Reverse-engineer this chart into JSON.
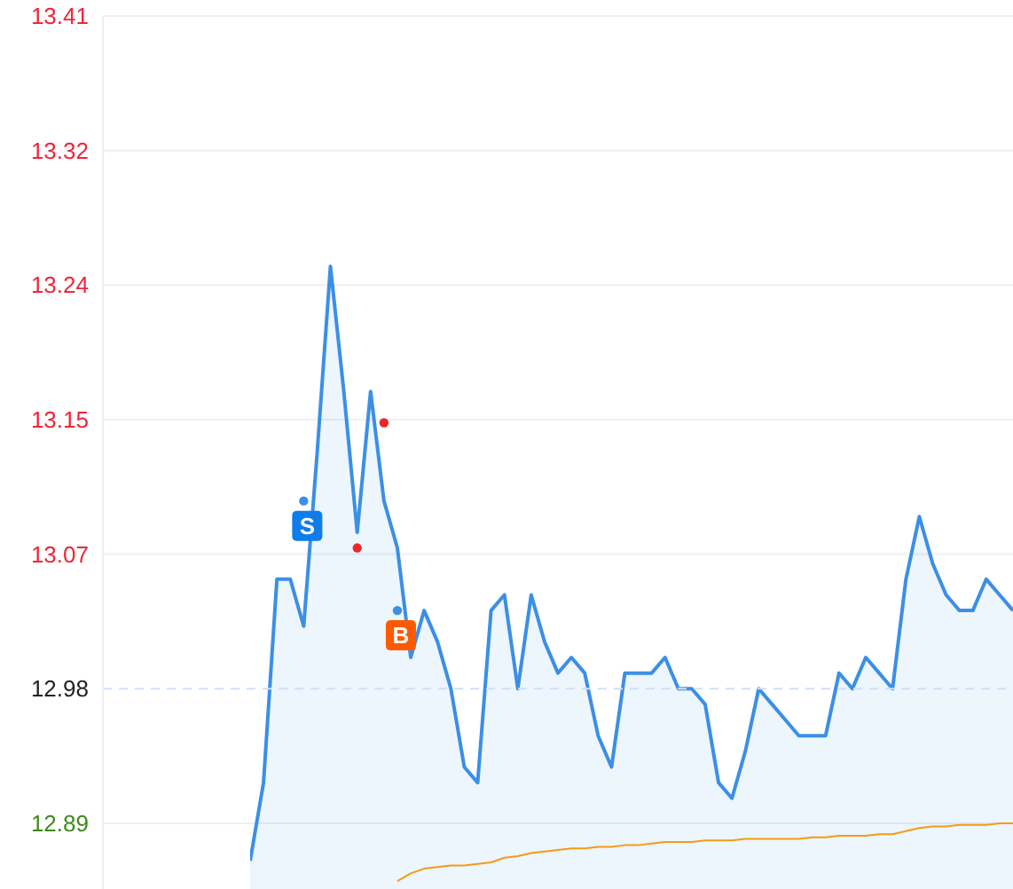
{
  "chart_data": {
    "type": "area",
    "categories": [
      null,
      null,
      null,
      null,
      null,
      null,
      null,
      null,
      null,
      null,
      null,
      null,
      null,
      null,
      null,
      null,
      null,
      null,
      null,
      null,
      null,
      null,
      null,
      null,
      null,
      null,
      null,
      null,
      null,
      null,
      null,
      null,
      null,
      null,
      null,
      null,
      null,
      null,
      null,
      null,
      null,
      null,
      null,
      null,
      null,
      null,
      null,
      null,
      null,
      null,
      null,
      null,
      null,
      null,
      null,
      null,
      null,
      null
    ],
    "series": [
      {
        "color": "#3b8fe6",
        "values": [
          12.87,
          12.92,
          13.05,
          13.05,
          13.02,
          13.13,
          13.25,
          13.17,
          13.08,
          13.17,
          13.1,
          13.07,
          13.0,
          13.03,
          13.01,
          12.98,
          12.93,
          12.92,
          13.03,
          13.04,
          12.98,
          13.04,
          13.01,
          12.99,
          13.0,
          12.99,
          12.95,
          12.93,
          12.99,
          12.99,
          12.99,
          13.0,
          12.98,
          12.98,
          12.97,
          12.92,
          12.91,
          12.94,
          12.98,
          12.97,
          12.96,
          12.95,
          12.95,
          12.95,
          12.99,
          12.98,
          13.0,
          12.99,
          12.98,
          13.05,
          13.09,
          13.06,
          13.04,
          13.03,
          13.03,
          13.05,
          13.04,
          13.03
        ]
      },
      {
        "type": "line",
        "color": "#f39c12",
        "values": [
          null,
          null,
          null,
          null,
          null,
          null,
          null,
          null,
          null,
          null,
          null,
          12.857,
          12.862,
          12.865,
          12.866,
          12.867,
          12.867,
          12.868,
          12.869,
          12.872,
          12.873,
          12.875,
          12.876,
          12.877,
          12.878,
          12.878,
          12.879,
          12.879,
          12.88,
          12.88,
          12.881,
          12.882,
          12.882,
          12.882,
          12.883,
          12.883,
          12.883,
          12.884,
          12.884,
          12.884,
          12.884,
          12.884,
          12.885,
          12.885,
          12.886,
          12.886,
          12.886,
          12.887,
          12.887,
          12.889,
          12.891,
          12.892,
          12.892,
          12.893,
          12.893,
          12.893,
          12.894,
          12.894
        ]
      },
      {
        "type": "scatter",
        "color": "#3b8fe6",
        "marker": "circle",
        "values": [
          null,
          null,
          null,
          null,
          13.1,
          null,
          null,
          null,
          null,
          null,
          null,
          13.03,
          null,
          null,
          null,
          null,
          null,
          null,
          null,
          null,
          null,
          null,
          null,
          null,
          null,
          null,
          null,
          null,
          null,
          null,
          null,
          null,
          null,
          null,
          null,
          null,
          null,
          null,
          null,
          null,
          null,
          null,
          null,
          null,
          null,
          null,
          null,
          null,
          null,
          null,
          null,
          null,
          null,
          null,
          null,
          null,
          null,
          null
        ],
        "value_labels": [
          null,
          null,
          null,
          null,
          "S",
          null,
          null,
          null,
          null,
          null,
          null,
          "B",
          null,
          null,
          null,
          null,
          null,
          null,
          null,
          null,
          null,
          null,
          null,
          null,
          null,
          null,
          null,
          null,
          null,
          null,
          null,
          null,
          null,
          null,
          null,
          null,
          null,
          null,
          null,
          null,
          null,
          null,
          null,
          null,
          null,
          null,
          null,
          null,
          null,
          null,
          null,
          null,
          null,
          null,
          null,
          null,
          null,
          null
        ]
      },
      {
        "type": "scatter",
        "color": "#e8282b",
        "marker": "circle",
        "values": [
          null,
          null,
          null,
          null,
          null,
          null,
          null,
          null,
          13.07,
          null,
          13.15,
          null,
          null,
          null,
          null,
          null,
          null,
          null,
          null,
          null,
          null,
          null,
          null,
          null,
          null,
          null,
          null,
          null,
          null,
          null,
          null,
          null,
          null,
          null,
          null,
          null,
          null,
          null,
          null,
          null,
          null,
          null,
          null,
          null,
          null,
          null,
          null,
          null,
          null,
          null,
          null,
          null,
          null,
          null,
          null,
          null,
          null,
          null
        ]
      }
    ],
    "ylim": [
      12.852,
      13.41
    ],
    "yticks": [
      {
        "value": 12.894,
        "label": "12.89"
      },
      12.98,
      {
        "value": 13.066,
        "label": "13.07"
      },
      {
        "value": 13.152,
        "label": "13.15"
      },
      {
        "value": 13.238,
        "label": "13.24"
      },
      {
        "value": 13.324,
        "label": "13.32"
      },
      13.41
    ],
    "ref_lines": [
      {
        "axis": "y",
        "value": 12.98,
        "color": "#cfe0f6",
        "line_style": "dashed"
      }
    ],
    "grid": "y",
    "tick_labels": "y",
    "marker": "none"
  }
}
